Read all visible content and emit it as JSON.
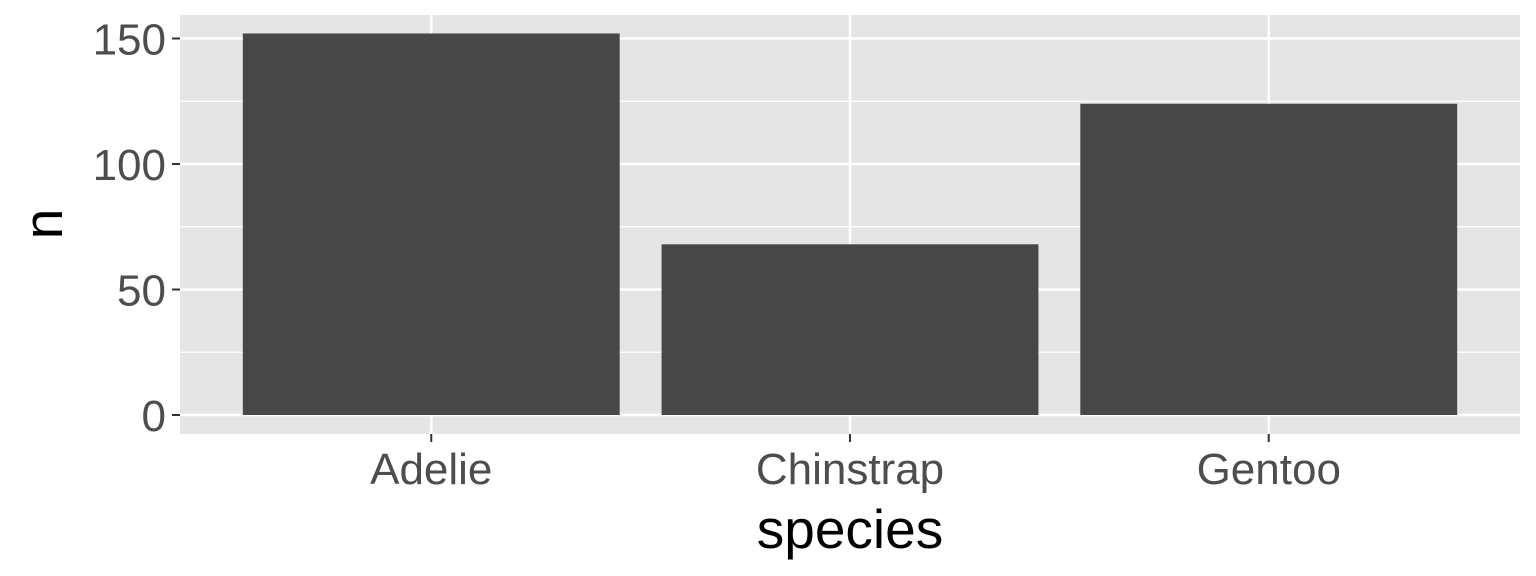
{
  "chart_data": {
    "type": "bar",
    "title": "",
    "xlabel": "species",
    "ylabel": "n",
    "categories": [
      "Adelie",
      "Chinstrap",
      "Gentoo"
    ],
    "values": [
      152,
      68,
      124
    ],
    "ylim": [
      0,
      160
    ],
    "yticks": [
      0,
      50,
      100,
      150
    ],
    "grid": true,
    "legend": "none",
    "colors": {
      "bar": "#474747",
      "panel": "#e5e5e5",
      "grid": "#ffffff",
      "tick_text": "#4d4d4d",
      "axis_title": "#000000"
    }
  }
}
